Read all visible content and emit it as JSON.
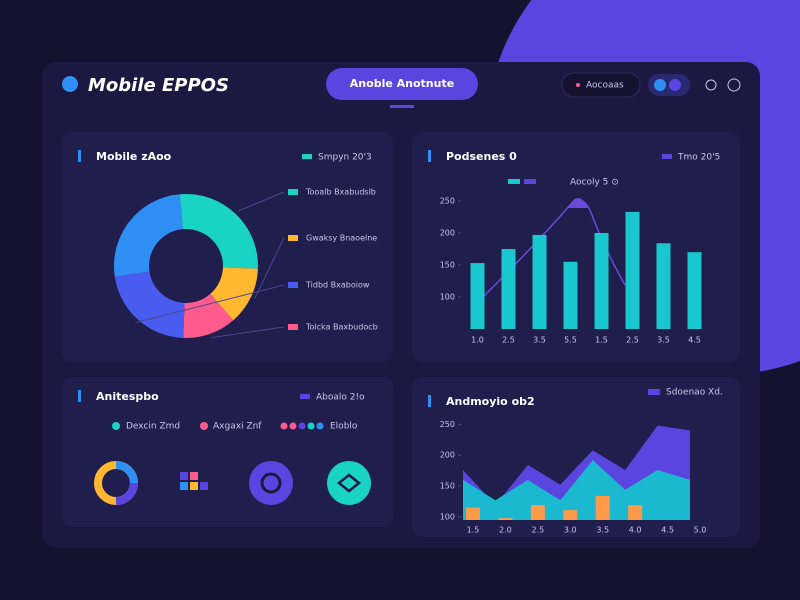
{
  "header": {
    "brand": "Mobile EPPOS",
    "tab": "Anoble Anotnute",
    "search": "Aocoaas"
  },
  "activity": {
    "title": "Anitespbo",
    "legend": "Aboalo 2!o",
    "items": [
      "Dexcin Zmd",
      "Axgaxi Znf",
      "Eloblo"
    ]
  },
  "chart_data": [
    {
      "type": "pie",
      "title": "Mobile zAoo",
      "legend": "Smpyn 20'3",
      "categories": [
        "Tooalb Bxabudslb",
        "Gwaksy Bnaoelne",
        "Tolcka Baxbudocb",
        "Tidbd Bxaboiow",
        null
      ],
      "values": [
        27,
        13,
        12,
        22,
        26
      ],
      "colors": [
        "#19d3c5",
        "#ffb830",
        "#ff5c8d",
        "#4a5cf0",
        "#2f8ff5"
      ]
    },
    {
      "type": "bar",
      "title": "Podsenes 0",
      "legend": "Tmo 20'5",
      "subtitle": "Aocoly 5 ⊙",
      "categories": [
        "1.0",
        "2.5",
        "3.5",
        "5.5",
        "1.5",
        "2.5",
        "3.5",
        "4.5"
      ],
      "values": [
        153,
        175,
        197,
        155,
        200,
        233,
        184,
        170
      ],
      "color": "#19c8cf",
      "ylim": [
        50,
        250
      ],
      "yticks": [
        100,
        150,
        200,
        250
      ]
    },
    {
      "type": "area",
      "title": "Andmoyio ob2",
      "categories": [
        "1.5",
        "2.0",
        "2.5",
        "3.0",
        "3.5",
        "4.0",
        "4.5",
        "5.0"
      ],
      "ylim": [
        95,
        265
      ],
      "yticks": [
        100,
        150,
        200,
        250
      ],
      "series": [
        {
          "name": "Sdoenao Xd.",
          "color": "#5b45e0",
          "type": "area",
          "values": [
            176,
            119,
            184,
            152,
            208,
            176,
            248,
            240
          ]
        },
        {
          "color": "#1bb9d0",
          "type": "area",
          "values": [
            160,
            127,
            160,
            127,
            192,
            144,
            176,
            160
          ]
        },
        {
          "color": "#ff9a4a",
          "type": "bar",
          "values": [
            115,
            98,
            119,
            111,
            134,
            119,
            null,
            null
          ]
        }
      ]
    }
  ]
}
